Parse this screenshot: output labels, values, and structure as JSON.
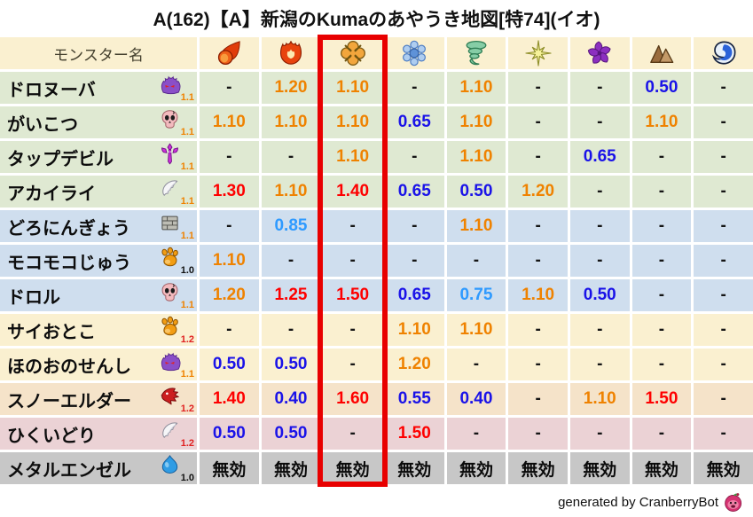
{
  "title": "A(162)【A】新潟のKumaのあやうき地図[特74](イオ)",
  "palette": {
    "header_bg": "#faf0d0",
    "row_green": "#dfe9d2",
    "row_blue": "#cfdeee",
    "row_cream": "#faf0d0",
    "row_peach": "#f5e3c9",
    "row_pink": "#ebd2d5",
    "row_gray": "#c7c7c7",
    "value_orange": "#ef8200",
    "value_red": "#fe0000",
    "value_blue_dark": "#1a12e8",
    "value_blue_light": "#2e9aff",
    "highlight_red": "#e80000"
  },
  "chart_data": {
    "type": "table",
    "name_column_header": "モンスター名",
    "element_columns": [
      {
        "element": "fire",
        "icon": "fireball-icon"
      },
      {
        "element": "blaze",
        "icon": "flame-icon"
      },
      {
        "element": "explosion",
        "icon": "explosion-burst-icon"
      },
      {
        "element": "ice",
        "icon": "snowflake-icon"
      },
      {
        "element": "wind",
        "icon": "tornado-icon"
      },
      {
        "element": "light",
        "icon": "starburst-icon"
      },
      {
        "element": "dark",
        "icon": "pinwheel-icon"
      },
      {
        "element": "rock",
        "icon": "mountain-icon"
      },
      {
        "element": "water",
        "icon": "wave-icon"
      }
    ],
    "highlighted_column_index": 2,
    "rows": [
      {
        "name": "ドロヌーバ",
        "family_icon": "purple-blob-icon",
        "multiplier": "1.1",
        "tint": "green",
        "values": [
          "-",
          "1.20",
          "1.10",
          "-",
          "1.10",
          "-",
          "-",
          "0.50",
          "-"
        ]
      },
      {
        "name": "がいこつ",
        "family_icon": "skull-icon",
        "multiplier": "1.1",
        "tint": "green",
        "values": [
          "1.10",
          "1.10",
          "1.10",
          "0.65",
          "1.10",
          "-",
          "-",
          "1.10",
          "-"
        ]
      },
      {
        "name": "タップデビル",
        "family_icon": "trident-icon",
        "multiplier": "1.1",
        "tint": "green",
        "values": [
          "-",
          "-",
          "1.10",
          "-",
          "1.10",
          "-",
          "0.65",
          "-",
          "-"
        ]
      },
      {
        "name": "アカイライ",
        "family_icon": "wing-icon",
        "multiplier": "1.1",
        "tint": "green",
        "values": [
          "1.30",
          "1.10",
          "1.40",
          "0.65",
          "0.50",
          "1.20",
          "-",
          "-",
          "-"
        ]
      },
      {
        "name": "どろにんぎょう",
        "family_icon": "brick-icon",
        "multiplier": "1.1",
        "tint": "blue",
        "values": [
          "-",
          "0.85",
          "-",
          "-",
          "1.10",
          "-",
          "-",
          "-",
          "-"
        ]
      },
      {
        "name": "モコモコじゅう",
        "family_icon": "paw-icon",
        "multiplier": "1.0",
        "tint": "blue",
        "values": [
          "1.10",
          "-",
          "-",
          "-",
          "-",
          "-",
          "-",
          "-",
          "-"
        ]
      },
      {
        "name": "ドロル",
        "family_icon": "skull-icon",
        "multiplier": "1.1",
        "tint": "blue",
        "values": [
          "1.20",
          "1.25",
          "1.50",
          "0.65",
          "0.75",
          "1.10",
          "0.50",
          "-",
          "-"
        ]
      },
      {
        "name": "サイおとこ",
        "family_icon": "paw-icon",
        "multiplier": "1.2",
        "tint": "cream",
        "values": [
          "-",
          "-",
          "-",
          "1.10",
          "1.10",
          "-",
          "-",
          "-",
          "-"
        ]
      },
      {
        "name": "ほのおのせんし",
        "family_icon": "purple-blob-icon",
        "multiplier": "1.1",
        "tint": "cream",
        "values": [
          "0.50",
          "0.50",
          "-",
          "1.20",
          "-",
          "-",
          "-",
          "-",
          "-"
        ]
      },
      {
        "name": "スノーエルダー",
        "family_icon": "dragon-icon",
        "multiplier": "1.2",
        "tint": "peach",
        "values": [
          "1.40",
          "0.40",
          "1.60",
          "0.55",
          "0.40",
          "-",
          "1.10",
          "1.50",
          "-"
        ]
      },
      {
        "name": "ひくいどり",
        "family_icon": "wing-icon",
        "multiplier": "1.2",
        "tint": "pink",
        "values": [
          "0.50",
          "0.50",
          "-",
          "1.50",
          "-",
          "-",
          "-",
          "-",
          "-"
        ]
      },
      {
        "name": "メタルエンゼル",
        "family_icon": "blue-slime-icon",
        "multiplier": "1.0",
        "tint": "gray",
        "values": [
          "無効",
          "無効",
          "無効",
          "無効",
          "無効",
          "無効",
          "無効",
          "無効",
          "無効"
        ]
      }
    ]
  },
  "footer": {
    "credit": "generated by CranberryBot",
    "icon": "cranberry-icon"
  }
}
